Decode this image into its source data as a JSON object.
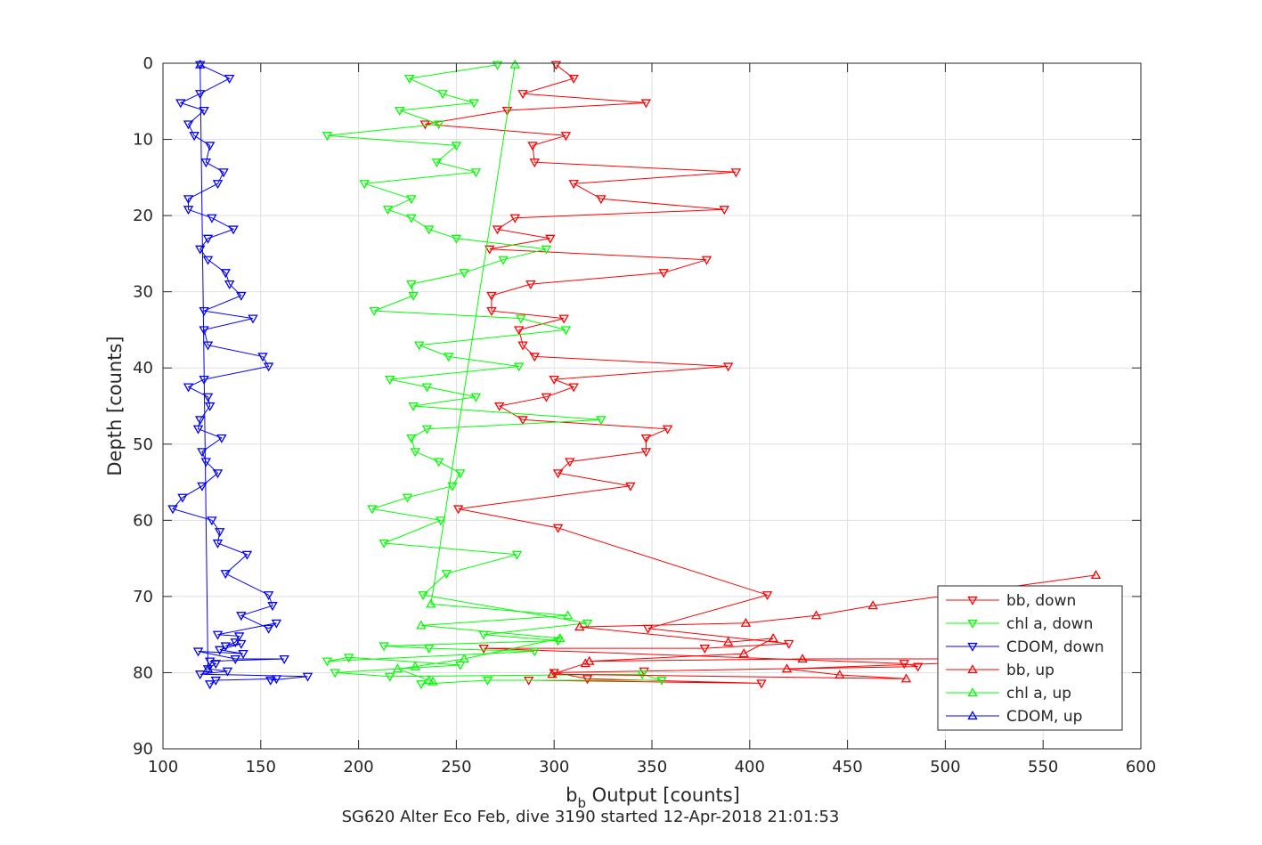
{
  "figure": {
    "caption": "SG620 Alter Eco Feb, dive 3190 started 12-Apr-2018 21:01:53"
  },
  "chart_data": {
    "type": "line",
    "title": "",
    "xlabel_main": "b",
    "xlabel_sub": "b",
    "xlabel_rest": " Output [counts]",
    "ylabel": "Depth [counts]",
    "xlim": [
      100,
      600
    ],
    "ylim": [
      0,
      90
    ],
    "y_reversed": true,
    "x_ticks": [
      100,
      150,
      200,
      250,
      300,
      350,
      400,
      450,
      500,
      550,
      600
    ],
    "y_ticks": [
      0,
      10,
      20,
      30,
      40,
      50,
      60,
      70,
      80,
      90
    ],
    "grid": true,
    "legend_position": "bottom-right",
    "series": [
      {
        "name": "bb, down",
        "color": "#ff0000",
        "marker": "triangle-down",
        "points": [
          [
            301,
            0.2
          ],
          [
            310,
            2
          ],
          [
            284,
            4
          ],
          [
            347,
            5.2
          ],
          [
            276,
            6.2
          ],
          [
            234,
            8
          ],
          [
            306,
            9.5
          ],
          [
            289,
            10.8
          ],
          [
            290,
            13
          ],
          [
            393,
            14.3
          ],
          [
            310,
            15.8
          ],
          [
            324,
            17.8
          ],
          [
            387,
            19.2
          ],
          [
            280,
            20.3
          ],
          [
            271,
            21.8
          ],
          [
            298,
            23
          ],
          [
            267,
            24.4
          ],
          [
            378,
            25.8
          ],
          [
            356,
            27.5
          ],
          [
            288,
            29
          ],
          [
            268,
            30.5
          ],
          [
            268,
            32.5
          ],
          [
            305,
            33.5
          ],
          [
            282,
            35
          ],
          [
            284,
            37
          ],
          [
            290,
            38.5
          ],
          [
            389,
            39.8
          ],
          [
            300,
            41.5
          ],
          [
            310,
            42.5
          ],
          [
            296,
            43.8
          ],
          [
            272,
            45
          ],
          [
            284,
            46.8
          ],
          [
            358,
            48
          ],
          [
            347,
            49.2
          ],
          [
            347,
            51
          ],
          [
            308,
            52.3
          ],
          [
            302,
            53.8
          ],
          [
            339,
            55.5
          ],
          [
            251,
            58.5
          ],
          [
            302,
            61
          ],
          [
            409,
            69.8
          ],
          [
            348,
            74.2
          ],
          [
            420,
            76.2
          ],
          [
            377,
            76.8
          ],
          [
            264,
            76.8
          ],
          [
            479,
            78.8
          ],
          [
            486,
            79.2
          ],
          [
            346,
            79.8
          ],
          [
            300,
            80
          ],
          [
            317,
            80.8
          ],
          [
            406,
            81.4
          ],
          [
            287,
            81
          ]
        ]
      },
      {
        "name": "chl a, down",
        "color": "#00ff00",
        "marker": "triangle-down",
        "points": [
          [
            271,
            0.2
          ],
          [
            226,
            2
          ],
          [
            243,
            4
          ],
          [
            259,
            5.2
          ],
          [
            221,
            6.2
          ],
          [
            241,
            8
          ],
          [
            184,
            9.5
          ],
          [
            250,
            10.8
          ],
          [
            240,
            13
          ],
          [
            260,
            14.3
          ],
          [
            203,
            15.8
          ],
          [
            227,
            17.8
          ],
          [
            215,
            19.2
          ],
          [
            227,
            20.3
          ],
          [
            236,
            21.8
          ],
          [
            250,
            23
          ],
          [
            296,
            24.4
          ],
          [
            274,
            25.8
          ],
          [
            254,
            27.5
          ],
          [
            227,
            29
          ],
          [
            228,
            30.5
          ],
          [
            208,
            32.5
          ],
          [
            283,
            33.5
          ],
          [
            306,
            35
          ],
          [
            231,
            37
          ],
          [
            246,
            38.5
          ],
          [
            282,
            39.8
          ],
          [
            216,
            41.5
          ],
          [
            235,
            42.5
          ],
          [
            260,
            43.8
          ],
          [
            228,
            45
          ],
          [
            324,
            46.8
          ],
          [
            235,
            48
          ],
          [
            227,
            49.2
          ],
          [
            229,
            51
          ],
          [
            241,
            52.3
          ],
          [
            252,
            53.8
          ],
          [
            248,
            55.5
          ],
          [
            225,
            57
          ],
          [
            207,
            58.5
          ],
          [
            242,
            60
          ],
          [
            213,
            63
          ],
          [
            281,
            64.5
          ],
          [
            245,
            67
          ],
          [
            233,
            69.8
          ],
          [
            317,
            73.5
          ],
          [
            264,
            75
          ],
          [
            302,
            75.8
          ],
          [
            213,
            76.5
          ],
          [
            236,
            76.8
          ],
          [
            290,
            77.2
          ],
          [
            184,
            78.5
          ],
          [
            195,
            78
          ],
          [
            252,
            79
          ],
          [
            188,
            80
          ],
          [
            216,
            80.5
          ],
          [
            345,
            80.2
          ],
          [
            355,
            81
          ],
          [
            266,
            81
          ],
          [
            232,
            81.5
          ]
        ]
      },
      {
        "name": "CDOM, down",
        "color": "#0000ff",
        "marker": "triangle-down",
        "points": [
          [
            119,
            0.2
          ],
          [
            134,
            2
          ],
          [
            119,
            4
          ],
          [
            109,
            5.2
          ],
          [
            121,
            6.2
          ],
          [
            113,
            8
          ],
          [
            116,
            9.5
          ],
          [
            124,
            10.8
          ],
          [
            122,
            13
          ],
          [
            131,
            14.3
          ],
          [
            128,
            15.8
          ],
          [
            113,
            17.8
          ],
          [
            113,
            19.2
          ],
          [
            125,
            20.3
          ],
          [
            136,
            21.8
          ],
          [
            123,
            23
          ],
          [
            119,
            24.4
          ],
          [
            123,
            25.8
          ],
          [
            132,
            27.5
          ],
          [
            134,
            29
          ],
          [
            140,
            30.5
          ],
          [
            121,
            32.5
          ],
          [
            146,
            33.5
          ],
          [
            121,
            35
          ],
          [
            123,
            37
          ],
          [
            151,
            38.5
          ],
          [
            154,
            39.8
          ],
          [
            121,
            41.5
          ],
          [
            113,
            42.5
          ],
          [
            123,
            43.8
          ],
          [
            124,
            45
          ],
          [
            119,
            46.8
          ],
          [
            118,
            48
          ],
          [
            130,
            49.2
          ],
          [
            120,
            51
          ],
          [
            122,
            52.3
          ],
          [
            128,
            53.8
          ],
          [
            120,
            55.5
          ],
          [
            110,
            57
          ],
          [
            105,
            58.5
          ],
          [
            125,
            60
          ],
          [
            129,
            61.5
          ],
          [
            128,
            63
          ],
          [
            143,
            64.5
          ],
          [
            132,
            67
          ],
          [
            154,
            69.8
          ],
          [
            156,
            71.2
          ],
          [
            140,
            72.5
          ],
          [
            154,
            74.2
          ],
          [
            158,
            73.5
          ],
          [
            128,
            75
          ],
          [
            139,
            75.2
          ],
          [
            137,
            76
          ],
          [
            132,
            76.5
          ],
          [
            140,
            76.2
          ],
          [
            129,
            77
          ],
          [
            141,
            77.5
          ],
          [
            118,
            77.2
          ],
          [
            137,
            78.2
          ],
          [
            162,
            78.2
          ],
          [
            124,
            78.5
          ],
          [
            127,
            78.8
          ],
          [
            123,
            79.5
          ],
          [
            133,
            79.8
          ],
          [
            119,
            80.2
          ],
          [
            174,
            80.5
          ],
          [
            155,
            81
          ],
          [
            158,
            80.8
          ],
          [
            127,
            81
          ],
          [
            124,
            81.5
          ]
        ]
      },
      {
        "name": "bb, up",
        "color": "#ff0000",
        "marker": "triangle-up",
        "points": [
          [
            577,
            67.2
          ],
          [
            463,
            71.2
          ],
          [
            434,
            72.5
          ],
          [
            398,
            73.5
          ],
          [
            313,
            74
          ],
          [
            389,
            76
          ],
          [
            412,
            75.5
          ],
          [
            397,
            77.5
          ],
          [
            318,
            78.5
          ],
          [
            427,
            78.2
          ],
          [
            561,
            78.2
          ],
          [
            419,
            79.5
          ],
          [
            446,
            80.3
          ],
          [
            480,
            80.8
          ],
          [
            299,
            80.2
          ],
          [
            316,
            78.8
          ]
        ]
      },
      {
        "name": "chl a, up",
        "color": "#00ff00",
        "marker": "triangle-up",
        "points": [
          [
            280,
            0.2
          ],
          [
            237,
            71
          ],
          [
            307,
            72.5
          ],
          [
            232,
            73.8
          ],
          [
            303,
            75.5
          ],
          [
            254,
            78.2
          ],
          [
            229,
            79.2
          ],
          [
            220,
            79.5
          ],
          [
            236,
            81
          ],
          [
            238,
            81.2
          ]
        ]
      },
      {
        "name": "CDOM, up",
        "color": "#0000ff",
        "marker": "triangle-up",
        "points": [
          [
            119,
            0.2
          ],
          [
            123,
            79.5
          ]
        ]
      }
    ]
  }
}
